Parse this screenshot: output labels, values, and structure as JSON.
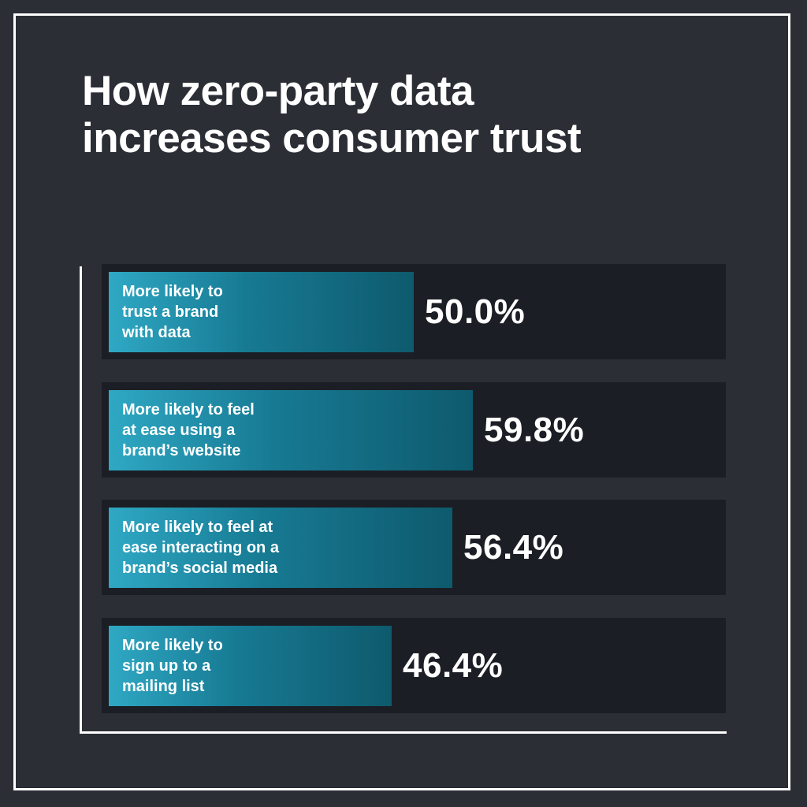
{
  "chart_data": {
    "type": "bar",
    "orientation": "horizontal",
    "title": "How zero-party data\nincreases consumer trust",
    "categories": [
      "More likely to\ntrust a brand\nwith data",
      "More likely to feel\nat ease using a\nbrand’s website",
      "More likely to feel at\nease interacting on a\nbrand’s social media",
      "More likely to\nsign up to a\nmailing list"
    ],
    "values": [
      50.0,
      59.8,
      56.4,
      46.4
    ],
    "value_labels": [
      "50.0%",
      "59.8%",
      "56.4%",
      "46.4%"
    ],
    "unit": "%",
    "grid": false,
    "legend": "none",
    "colors": {
      "background": "#2b2e35",
      "row_background": "#1b1e24",
      "bar_start": "#2fa8c4",
      "bar_end": "#0e5a6d",
      "text": "#ffffff",
      "axis": "#ffffff"
    }
  }
}
